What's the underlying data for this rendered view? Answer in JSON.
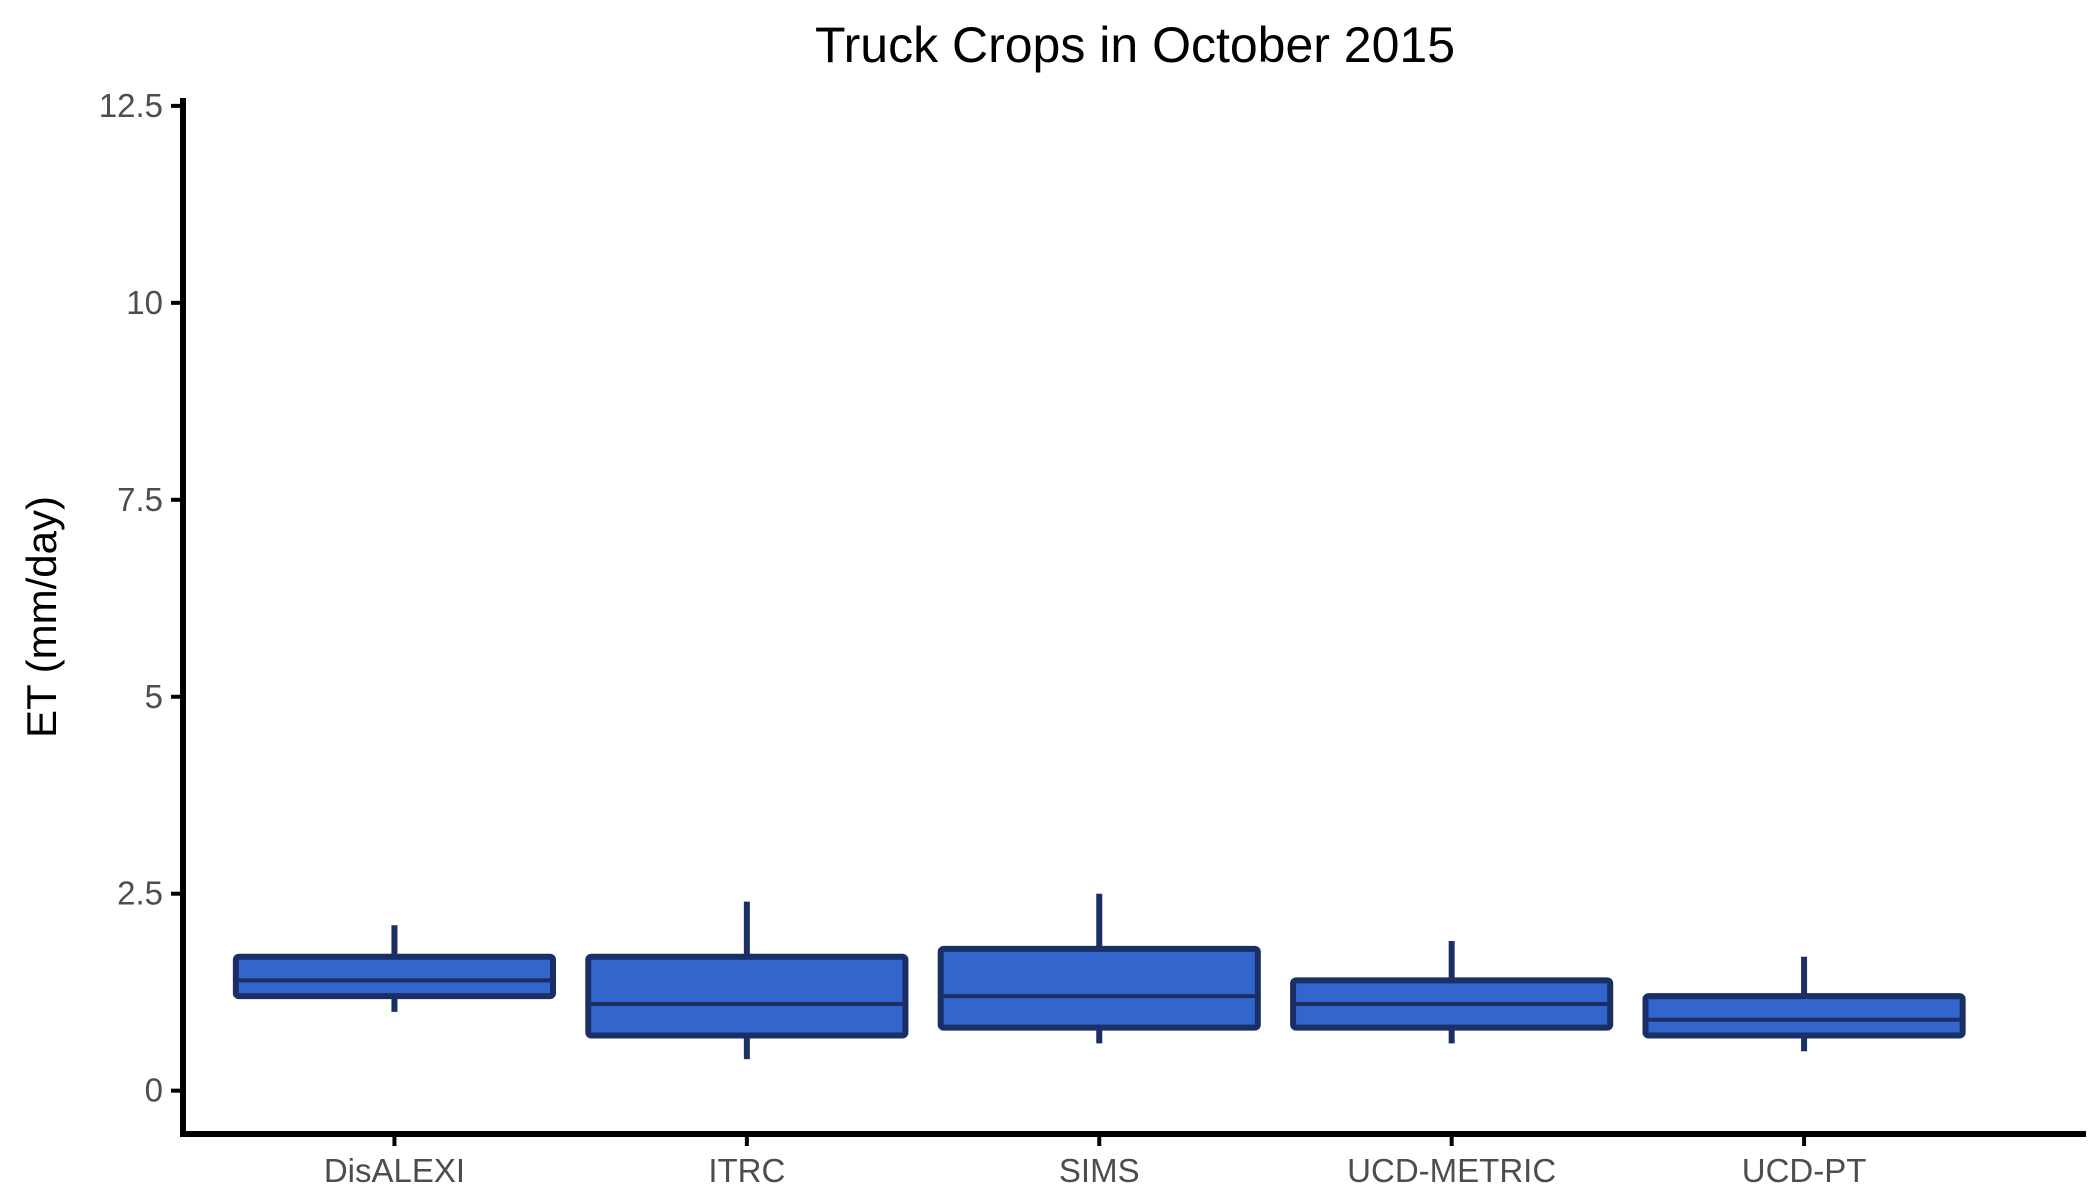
{
  "chart_data": {
    "type": "boxplot",
    "title": "Truck Crops in October 2015",
    "xlabel": "",
    "ylabel": "ET (mm/day)",
    "ylim": [
      -0.55,
      12.6
    ],
    "yticks": [
      0,
      2.5,
      5,
      7.5,
      10,
      12.5
    ],
    "ytick_labels": [
      "0",
      "2.5",
      "5",
      "7.5",
      "10",
      "12.5"
    ],
    "categories": [
      "DisALEXI",
      "ITRC",
      "SIMS",
      "UCD-METRIC",
      "UCD-PT"
    ],
    "boxes": [
      {
        "category": "DisALEXI",
        "whisker_low": 1.0,
        "q1": 1.2,
        "median": 1.4,
        "q3": 1.7,
        "whisker_high": 2.1
      },
      {
        "category": "ITRC",
        "whisker_low": 0.4,
        "q1": 0.7,
        "median": 1.1,
        "q3": 1.7,
        "whisker_high": 2.4
      },
      {
        "category": "SIMS",
        "whisker_low": 0.6,
        "q1": 0.8,
        "median": 1.2,
        "q3": 1.8,
        "whisker_high": 2.5
      },
      {
        "category": "UCD-METRIC",
        "whisker_low": 0.6,
        "q1": 0.8,
        "median": 1.1,
        "q3": 1.4,
        "whisker_high": 1.9
      },
      {
        "category": "UCD-PT",
        "whisker_low": 0.5,
        "q1": 0.7,
        "median": 0.9,
        "q3": 1.2,
        "whisker_high": 1.7
      }
    ],
    "colors": {
      "box_fill": "#3366cc",
      "box_stroke": "#1a2f66",
      "axis": "#000000"
    },
    "grid": false,
    "legend": "none"
  }
}
